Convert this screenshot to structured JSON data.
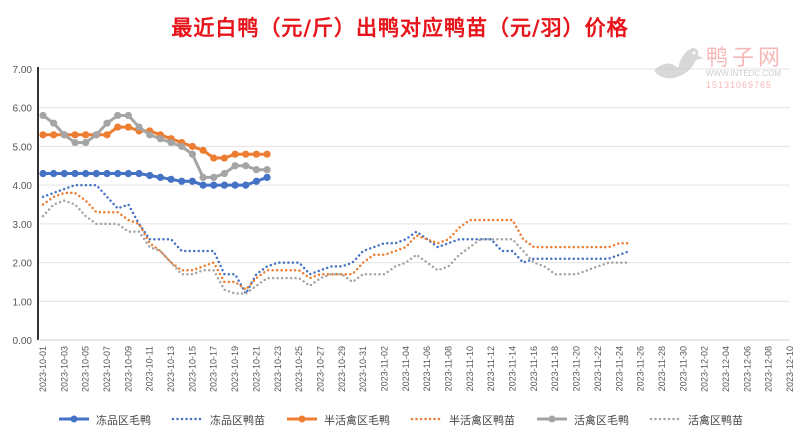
{
  "chart_data": {
    "type": "line",
    "title": "最近白鸭（元/斤）出鸭对应鸭苗（元/羽）价格",
    "ylim": [
      0,
      7
    ],
    "yticks": [
      "0.00",
      "1.00",
      "2.00",
      "3.00",
      "4.00",
      "5.00",
      "6.00",
      "7.00"
    ],
    "x_start": "2023-10-01",
    "x_days": 71,
    "x_labels": [
      "2023-10-01",
      "2023-10-03",
      "2023-10-05",
      "2023-10-07",
      "2023-10-09",
      "2023-10-11",
      "2023-10-13",
      "2023-10-15",
      "2023-10-17",
      "2023-10-19",
      "2023-10-21",
      "2023-10-23",
      "2023-10-25",
      "2023-10-27",
      "2023-10-29",
      "2023-10-31",
      "2023-11-02",
      "2023-11-04",
      "2023-11-06",
      "2023-11-08",
      "2023-11-10",
      "2023-11-12",
      "2023-11-14",
      "2023-11-16",
      "2023-11-18",
      "2023-11-20",
      "2023-11-22",
      "2023-11-24",
      "2023-11-26",
      "2023-11-28",
      "2023-11-30",
      "2023-12-02",
      "2023-12-04",
      "2023-12-06",
      "2023-12-08",
      "2023-12-10"
    ],
    "grid": true,
    "legend": "bottom",
    "series": [
      {
        "name": "冻品区毛鸭",
        "color": "#4472c4",
        "style": "solid",
        "values": [
          4.3,
          4.3,
          4.3,
          4.3,
          4.3,
          4.3,
          4.3,
          4.3,
          4.3,
          4.3,
          4.25,
          4.2,
          4.15,
          4.1,
          4.1,
          4.0,
          4.0,
          4.0,
          4.0,
          4.0,
          4.1,
          4.2
        ]
      },
      {
        "name": "冻品区鸭苗",
        "color": "#4472c4",
        "style": "dotted",
        "values": [
          3.7,
          3.8,
          3.9,
          4.0,
          4.0,
          4.0,
          3.7,
          3.4,
          3.5,
          3.0,
          2.6,
          2.6,
          2.6,
          2.3,
          2.3,
          2.3,
          2.3,
          1.7,
          1.7,
          1.2,
          1.7,
          1.9,
          2.0,
          2.0,
          2.0,
          1.7,
          1.8,
          1.9,
          1.9,
          2.0,
          2.3,
          2.4,
          2.5,
          2.5,
          2.6,
          2.8,
          2.6,
          2.4,
          2.5,
          2.6,
          2.6,
          2.6,
          2.6,
          2.3,
          2.3,
          2.0,
          2.1,
          2.1,
          2.1,
          2.1,
          2.1,
          2.1,
          2.1,
          2.1,
          2.2,
          2.3
        ]
      },
      {
        "name": "半活禽区毛鸭",
        "color": "#ed7d31",
        "style": "solid",
        "values": [
          5.3,
          5.3,
          5.3,
          5.3,
          5.3,
          5.3,
          5.3,
          5.5,
          5.5,
          5.4,
          5.4,
          5.3,
          5.2,
          5.1,
          5.0,
          4.9,
          4.7,
          4.7,
          4.8,
          4.8,
          4.8,
          4.8
        ]
      },
      {
        "name": "半活禽区鸭苗",
        "color": "#ed7d31",
        "style": "dotted",
        "values": [
          3.5,
          3.7,
          3.8,
          3.8,
          3.6,
          3.3,
          3.3,
          3.3,
          3.1,
          3.0,
          2.5,
          2.3,
          2.0,
          1.8,
          1.8,
          1.9,
          2.0,
          1.5,
          1.5,
          1.3,
          1.6,
          1.8,
          1.8,
          1.8,
          1.8,
          1.6,
          1.7,
          1.7,
          1.7,
          1.7,
          2.0,
          2.2,
          2.2,
          2.3,
          2.4,
          2.7,
          2.6,
          2.5,
          2.6,
          2.9,
          3.1,
          3.1,
          3.1,
          3.1,
          3.1,
          2.6,
          2.4,
          2.4,
          2.4,
          2.4,
          2.4,
          2.4,
          2.4,
          2.4,
          2.5,
          2.5
        ]
      },
      {
        "name": "活禽区毛鸭",
        "color": "#a5a5a5",
        "style": "solid",
        "values": [
          5.8,
          5.6,
          5.3,
          5.1,
          5.1,
          5.3,
          5.6,
          5.8,
          5.8,
          5.5,
          5.3,
          5.2,
          5.1,
          5.0,
          4.8,
          4.2,
          4.2,
          4.3,
          4.5,
          4.5,
          4.4,
          4.4
        ]
      },
      {
        "name": "活禽区鸭苗",
        "color": "#a5a5a5",
        "style": "dotted",
        "values": [
          3.2,
          3.5,
          3.6,
          3.5,
          3.2,
          3.0,
          3.0,
          3.0,
          2.8,
          2.8,
          2.4,
          2.3,
          2.0,
          1.7,
          1.7,
          1.8,
          1.8,
          1.3,
          1.2,
          1.2,
          1.4,
          1.6,
          1.6,
          1.6,
          1.6,
          1.4,
          1.6,
          1.7,
          1.7,
          1.5,
          1.7,
          1.7,
          1.7,
          1.9,
          2.0,
          2.2,
          2.0,
          1.8,
          1.9,
          2.2,
          2.4,
          2.6,
          2.6,
          2.6,
          2.6,
          2.3,
          2.0,
          1.9,
          1.7,
          1.7,
          1.7,
          1.8,
          1.9,
          2.0,
          2.0,
          2.0
        ]
      }
    ]
  },
  "watermark": {
    "name": "鸭子网",
    "url": "WWW.INTEDC.COM",
    "phone": "15131069765"
  }
}
